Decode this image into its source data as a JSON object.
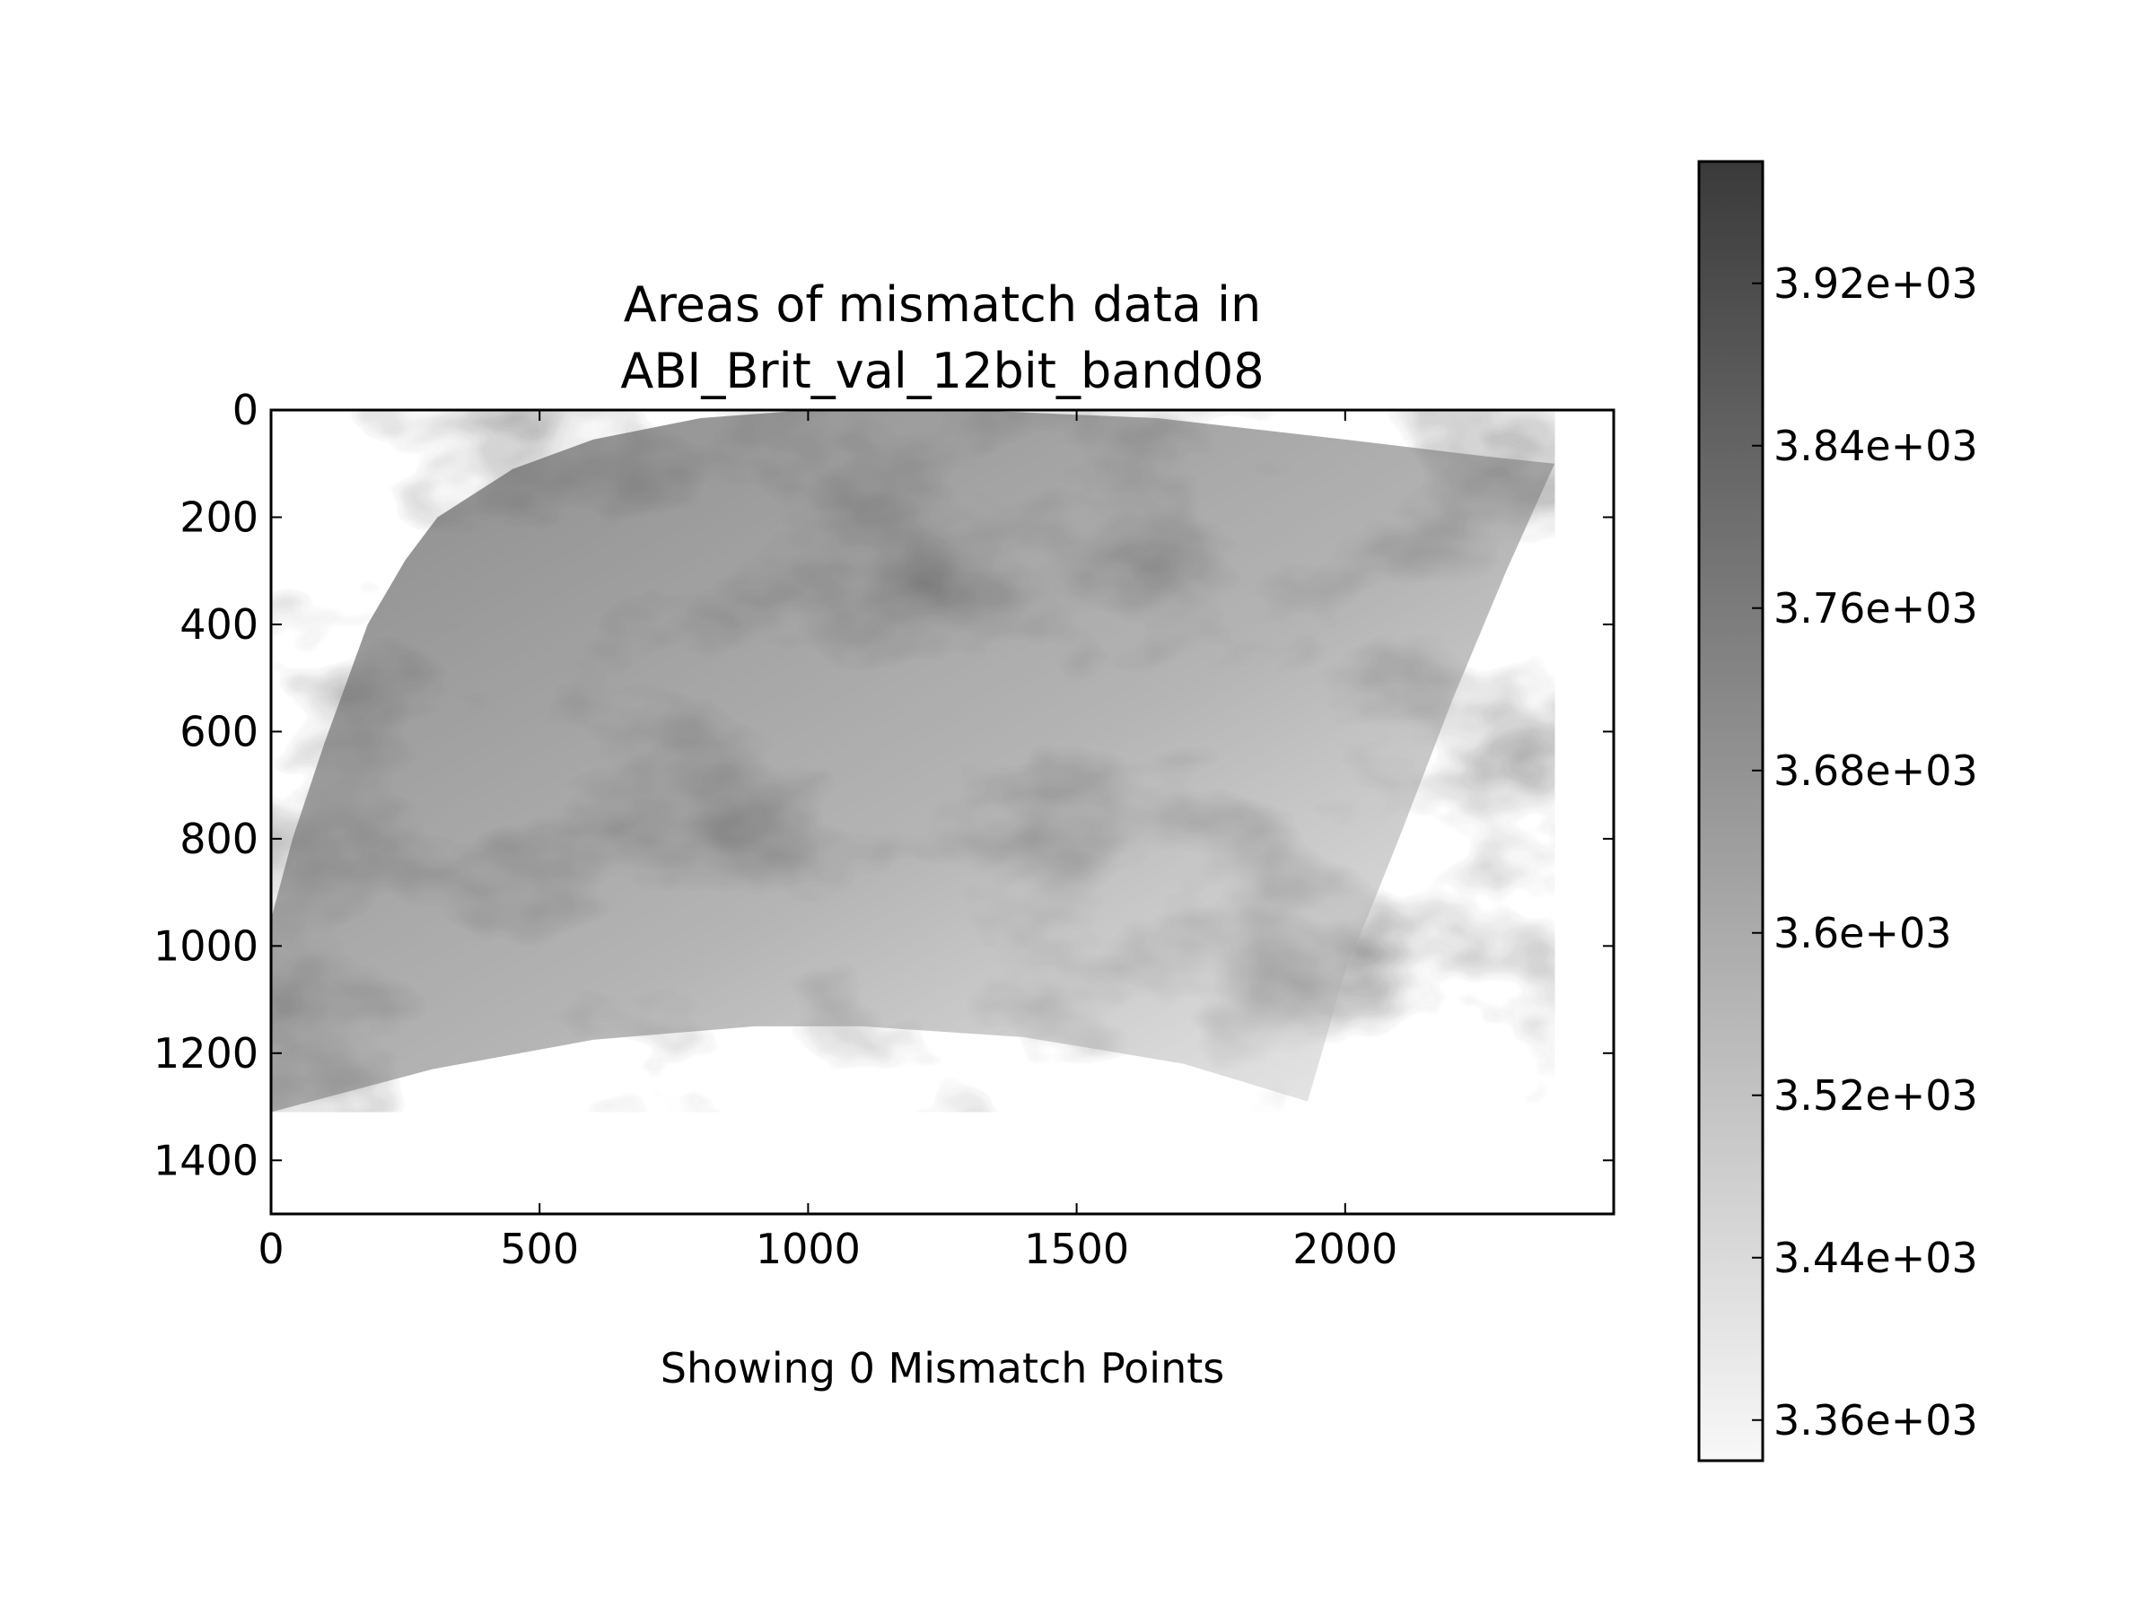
{
  "chart_data": {
    "type": "heatmap",
    "title": [
      "Areas of mismatch data in",
      "ABI_Brit_val_12bit_band08"
    ],
    "xlabel": "Showing 0 Mismatch Points",
    "ylabel": "",
    "xlim": [
      0,
      2500
    ],
    "ylim": [
      1500,
      0
    ],
    "y_inverted": true,
    "grid": false,
    "x_ticks": [
      0,
      500,
      1000,
      1500,
      2000
    ],
    "x_tick_labels": [
      "0",
      "500",
      "1000",
      "1500",
      "2000"
    ],
    "y_ticks": [
      0,
      200,
      400,
      600,
      800,
      1000,
      1200,
      1400
    ],
    "y_tick_labels": [
      "0",
      "200",
      "400",
      "600",
      "800",
      "1000",
      "1200",
      "1400"
    ],
    "image_region": {
      "outline": [
        [
          0,
          950
        ],
        [
          40,
          800
        ],
        [
          100,
          620
        ],
        [
          180,
          400
        ],
        [
          250,
          280
        ],
        [
          310,
          200
        ],
        [
          450,
          110
        ],
        [
          600,
          55
        ],
        [
          800,
          15
        ],
        [
          1000,
          0
        ],
        [
          1300,
          0
        ],
        [
          1650,
          15
        ],
        [
          2000,
          55
        ],
        [
          2250,
          85
        ],
        [
          2390,
          100
        ],
        [
          2300,
          300
        ],
        [
          2200,
          540
        ],
        [
          2100,
          800
        ],
        [
          2000,
          1050
        ],
        [
          1930,
          1290
        ],
        [
          1700,
          1220
        ],
        [
          1400,
          1170
        ],
        [
          1100,
          1150
        ],
        [
          900,
          1150
        ],
        [
          600,
          1175
        ],
        [
          300,
          1230
        ],
        [
          0,
          1310
        ]
      ]
    },
    "mismatch_points": [],
    "colorbar": {
      "colormap": "gray_r",
      "vmin": 3340,
      "vmax": 3980,
      "ticks": [
        3920,
        3840,
        3760,
        3680,
        3600,
        3520,
        3440,
        3360
      ],
      "tick_labels": [
        "3.92e+03",
        "3.84e+03",
        "3.76e+03",
        "3.68e+03",
        "3.6e+03",
        "3.52e+03",
        "3.44e+03",
        "3.36e+03"
      ],
      "colors": [
        "#3a3a3a",
        "#f8f8f8"
      ]
    }
  }
}
